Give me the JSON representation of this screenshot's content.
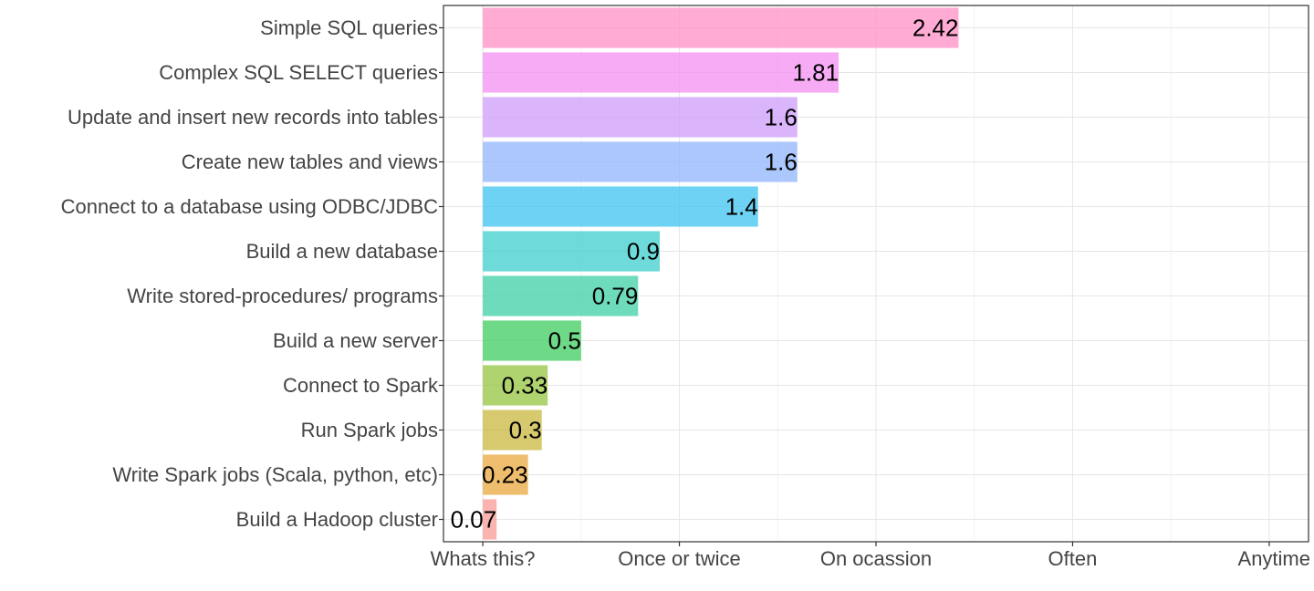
{
  "chart_data": {
    "type": "bar",
    "orientation": "horizontal",
    "title": "",
    "xlabel": "",
    "ylabel": "",
    "xlim": [
      -0.2,
      4.2
    ],
    "x_ticks": [
      {
        "value": 0,
        "label": "Whats this?"
      },
      {
        "value": 1,
        "label": "Once or twice"
      },
      {
        "value": 2,
        "label": "On ocassion"
      },
      {
        "value": 3,
        "label": "Often"
      },
      {
        "value": 4,
        "label": "Anytime"
      }
    ],
    "grid": true,
    "legend": "none",
    "bars": [
      {
        "category": "Simple SQL queries",
        "value": 2.42,
        "label": "2.42",
        "color": "#ff8fc4"
      },
      {
        "category": "Complex SQL SELECT queries",
        "value": 1.81,
        "label": "1.81",
        "color": "#f38ff0"
      },
      {
        "category": "Update and insert new records into tables",
        "value": 1.6,
        "label": "1.6",
        "color": "#cf9cfb"
      },
      {
        "category": "Create new tables and views",
        "value": 1.6,
        "label": "1.6",
        "color": "#8fb4fb"
      },
      {
        "category": "Connect to a database using ODBC/JDBC",
        "value": 1.4,
        "label": "1.4",
        "color": "#3ec3f0"
      },
      {
        "category": "Build a new database",
        "value": 0.9,
        "label": "0.9",
        "color": "#3ecfce"
      },
      {
        "category": "Write stored-procedures/ programs",
        "value": 0.79,
        "label": "0.79",
        "color": "#3ed0a6"
      },
      {
        "category": "Build a new server",
        "value": 0.5,
        "label": "0.5",
        "color": "#3ecc5e"
      },
      {
        "category": "Connect to Spark",
        "value": 0.33,
        "label": "0.33",
        "color": "#94c43e"
      },
      {
        "category": "Run Spark jobs",
        "value": 0.3,
        "label": "0.3",
        "color": "#c9b73e"
      },
      {
        "category": "Write Spark jobs (Scala, python, etc)",
        "value": 0.23,
        "label": "0.23",
        "color": "#e9a73e"
      },
      {
        "category": "Build a Hadoop cluster",
        "value": 0.07,
        "label": "0.07",
        "color": "#f89a94"
      }
    ]
  }
}
